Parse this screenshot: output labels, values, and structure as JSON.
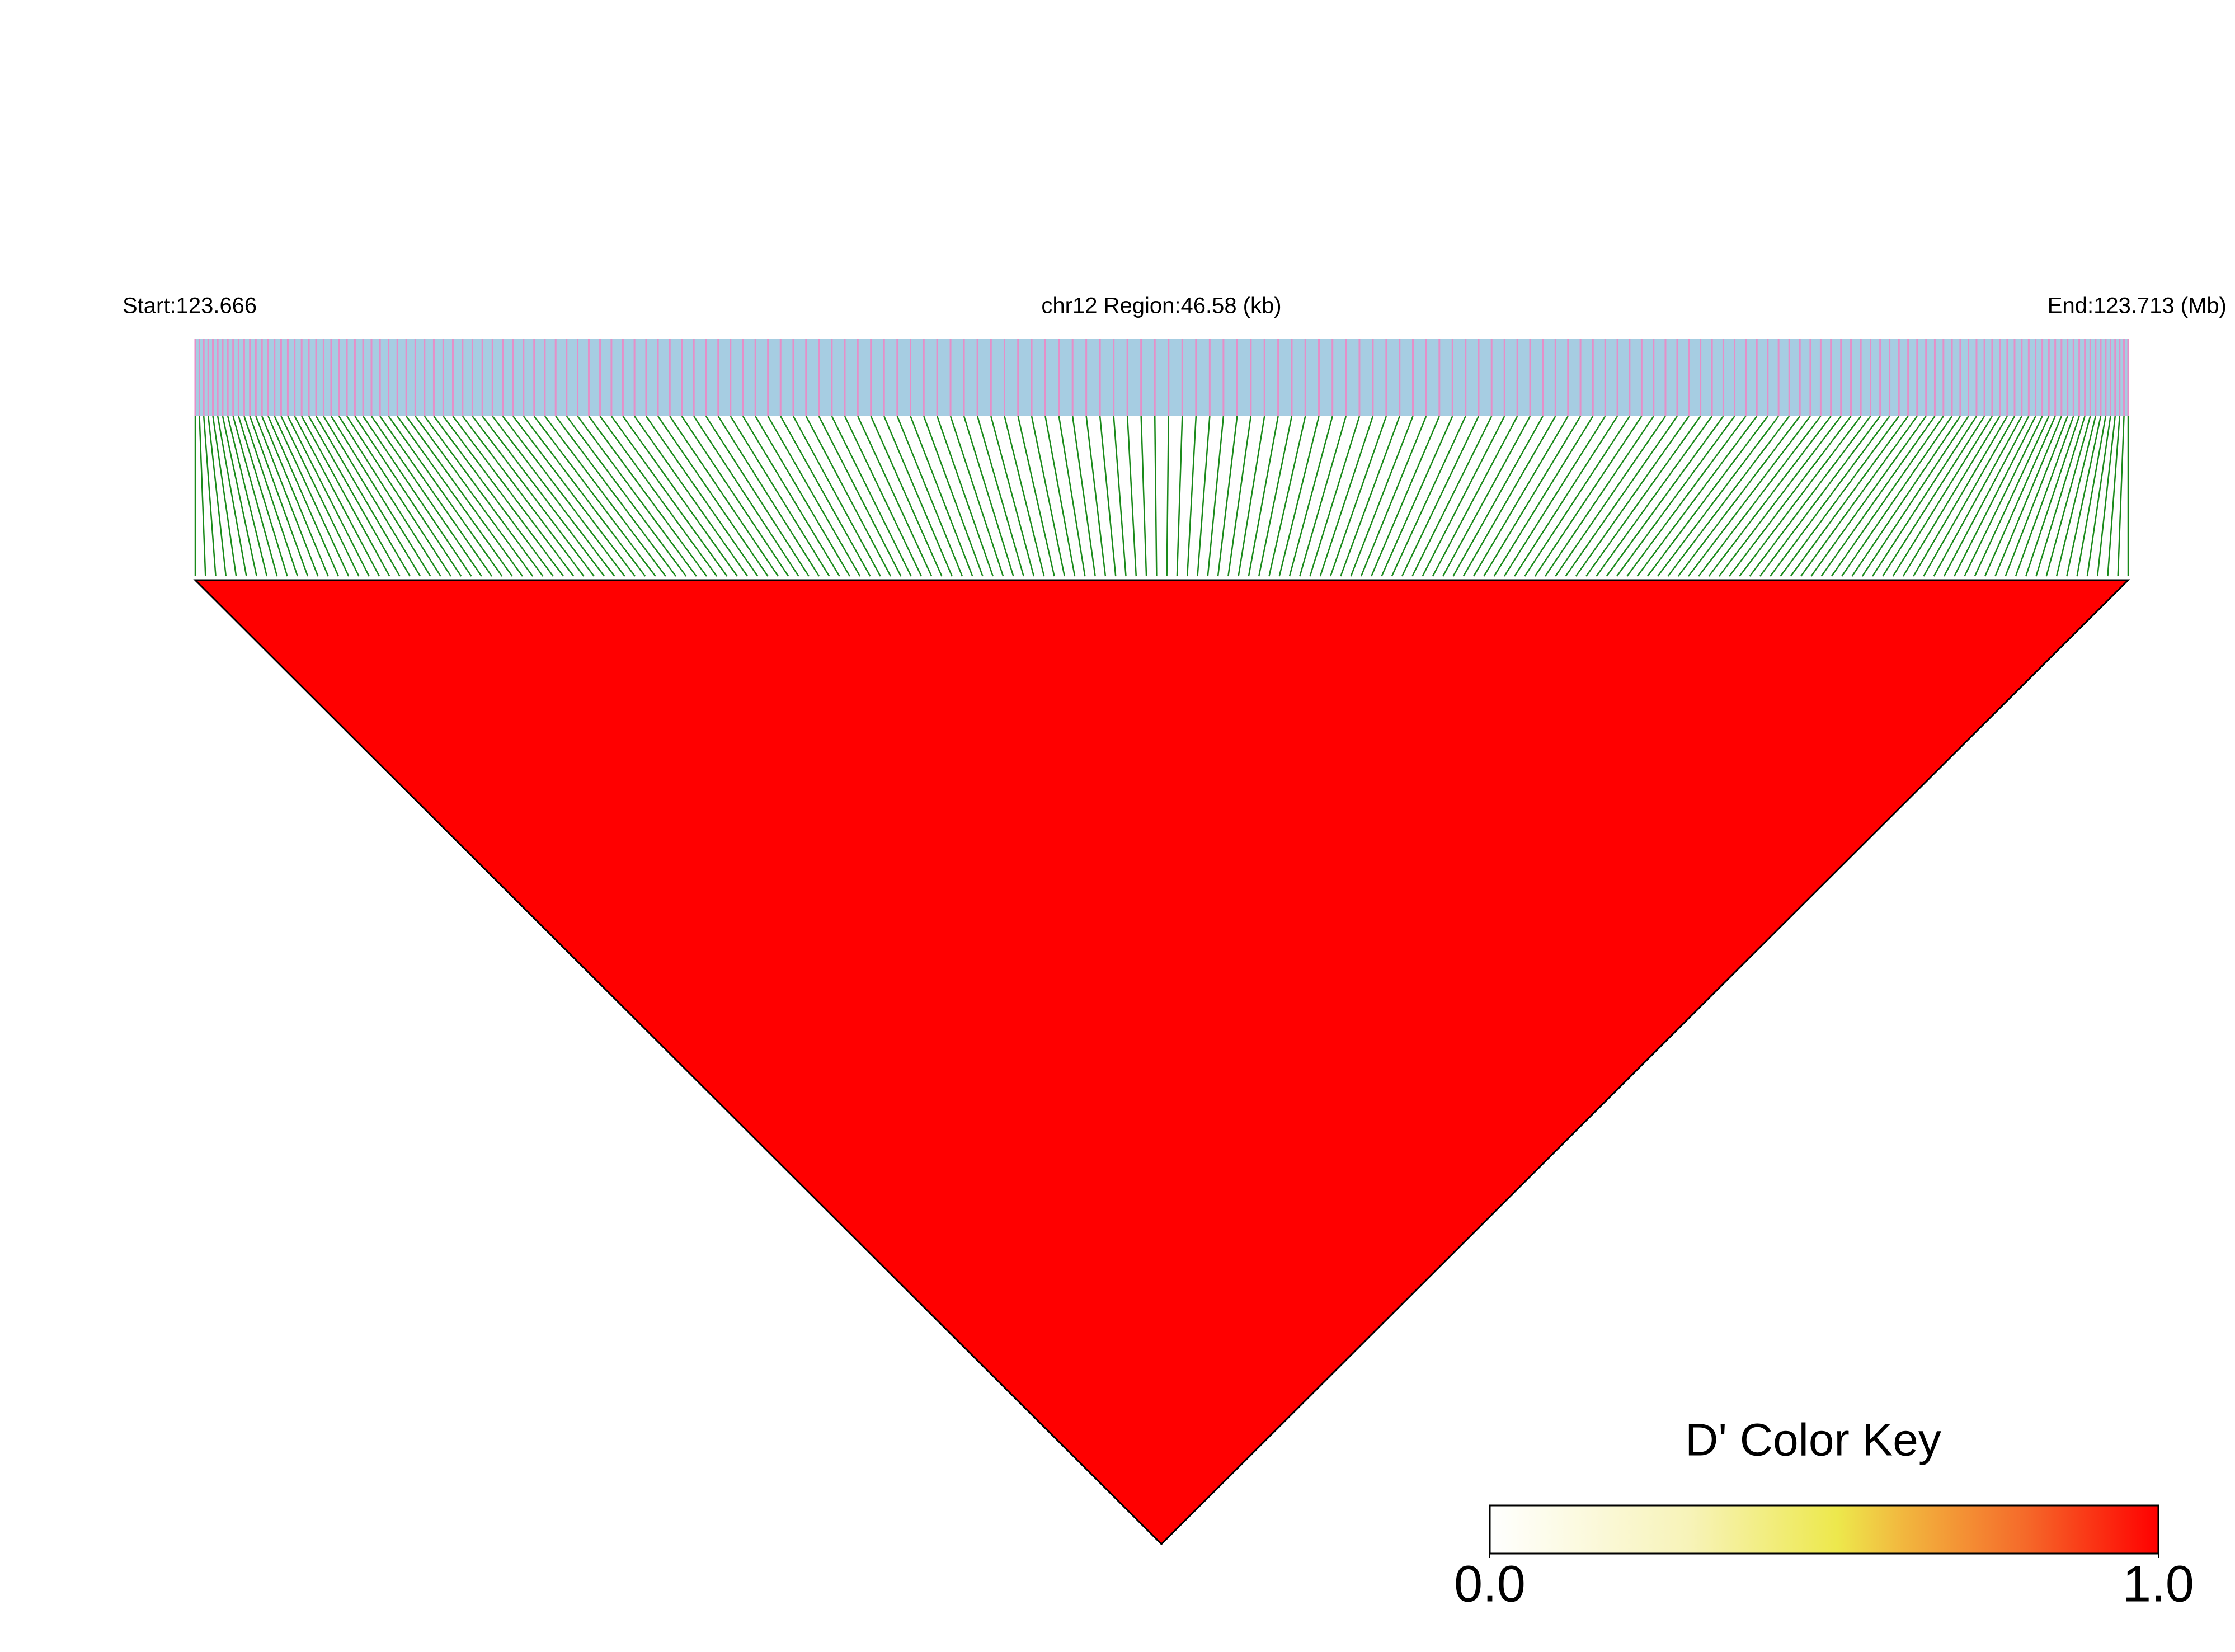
{
  "chart_data": {
    "type": "ld-heatmap",
    "start_label": "Start:123.666",
    "region_label": "chr12 Region:46.58 (kb)",
    "end_label": "End:123.713 (Mb)",
    "color_key_title": "D' Color Key",
    "clim": [
      0,
      1
    ],
    "cticks": [
      {
        "value": 0,
        "label": "0.0"
      },
      {
        "value": 1,
        "label": "1.0"
      }
    ]
  }
}
